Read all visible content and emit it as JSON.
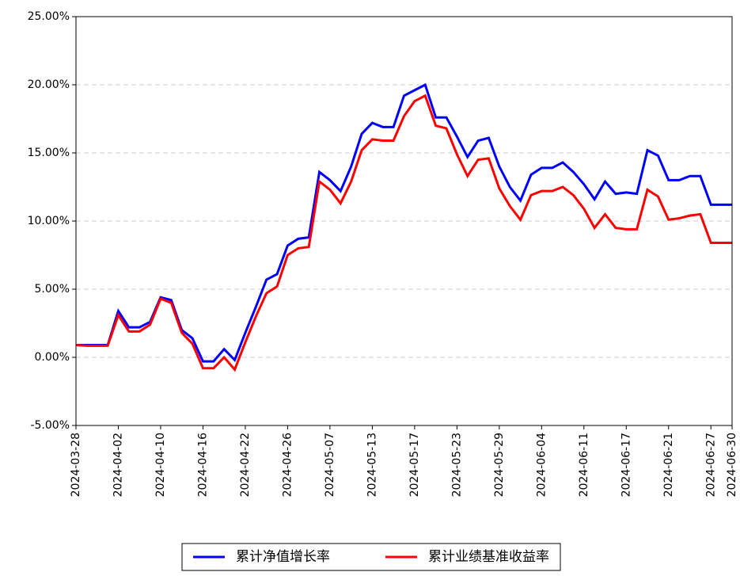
{
  "chart_data": {
    "type": "line",
    "categories": [
      "2024-03-28",
      null,
      null,
      null,
      "2024-04-02",
      null,
      null,
      null,
      "2024-04-10",
      null,
      null,
      null,
      "2024-04-16",
      null,
      null,
      null,
      "2024-04-22",
      null,
      null,
      null,
      "2024-04-26",
      null,
      null,
      null,
      "2024-05-07",
      null,
      null,
      null,
      "2024-05-13",
      null,
      null,
      null,
      "2024-05-17",
      null,
      null,
      null,
      "2024-05-23",
      null,
      null,
      null,
      "2024-05-29",
      null,
      null,
      null,
      "2024-06-04",
      null,
      null,
      null,
      "2024-06-11",
      null,
      null,
      null,
      "2024-06-17",
      null,
      null,
      null,
      "2024-06-21",
      null,
      null,
      null,
      "2024-06-27",
      null,
      "2024-06-30"
    ],
    "series": [
      {
        "name": "累计净值增长率",
        "color": "#0000ff",
        "values": [
          0.9,
          0.9,
          0.9,
          0.9,
          3.4,
          2.2,
          2.2,
          2.6,
          4.4,
          4.2,
          2.0,
          1.4,
          -0.3,
          -0.3,
          0.6,
          -0.2,
          1.8,
          3.7,
          5.7,
          6.1,
          8.2,
          8.7,
          8.8,
          13.6,
          13.0,
          12.2,
          14.0,
          16.4,
          17.2,
          16.9,
          16.9,
          19.2,
          19.6,
          20.0,
          17.6,
          17.6,
          16.2,
          14.7,
          15.9,
          16.1,
          14.0,
          12.5,
          11.5,
          13.4,
          13.9,
          13.9,
          14.3,
          13.6,
          12.7,
          11.6,
          12.9,
          12.0,
          12.1,
          12.0,
          15.2,
          14.8,
          13.0,
          13.0,
          13.3,
          13.3,
          11.2,
          11.2,
          11.2
        ]
      },
      {
        "name": "累计业绩基准收益率",
        "color": "#ff0000",
        "values": [
          0.9,
          0.85,
          0.85,
          0.85,
          3.1,
          1.9,
          1.9,
          2.4,
          4.3,
          4.0,
          1.8,
          1.0,
          -0.8,
          -0.8,
          0.0,
          -0.9,
          1.1,
          3.0,
          4.7,
          5.2,
          7.5,
          8.0,
          8.1,
          12.9,
          12.3,
          11.3,
          12.9,
          15.2,
          16.0,
          15.9,
          15.9,
          17.7,
          18.8,
          19.2,
          17.0,
          16.8,
          14.9,
          13.3,
          14.5,
          14.6,
          12.4,
          11.1,
          10.1,
          11.9,
          12.2,
          12.2,
          12.5,
          11.9,
          10.9,
          9.5,
          10.5,
          9.5,
          9.4,
          9.4,
          12.3,
          11.8,
          10.1,
          10.2,
          10.4,
          10.5,
          8.4,
          8.4,
          8.4
        ]
      }
    ],
    "ylim": [
      -5,
      25
    ],
    "yticks": [
      {
        "value": -5,
        "label": "-5.00%"
      },
      {
        "value": 0,
        "label": "0.00%"
      },
      {
        "value": 5,
        "label": "5.00%"
      },
      {
        "value": 10,
        "label": "10.00%"
      },
      {
        "value": 15,
        "label": "15.00%"
      },
      {
        "value": 20,
        "label": "20.00%"
      },
      {
        "value": 25,
        "label": "25.00%"
      }
    ],
    "grid": true,
    "legend": "bottom"
  }
}
